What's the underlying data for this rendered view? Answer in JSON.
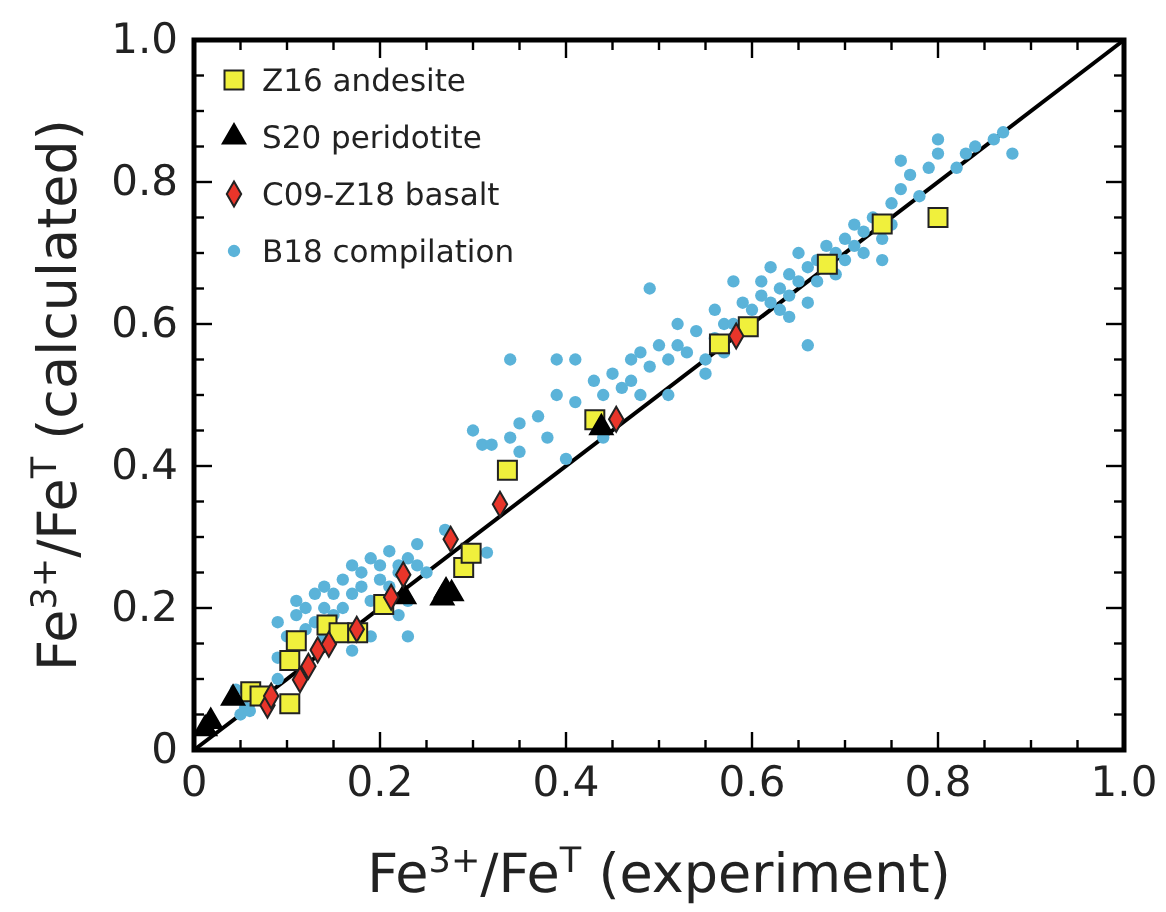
{
  "chart_data": {
    "type": "scatter",
    "xlabel": "Fe$^{3+}$/Fe$^{T}$ (experiment)",
    "ylabel": "Fe$^{3+}$/Fe$^{T}$ (calculated)",
    "xlim": [
      0,
      1
    ],
    "ylim": [
      0,
      1
    ],
    "xticks": [
      0,
      {
        "value": 0.05,
        "label": null
      },
      {
        "value": 0.1,
        "label": null
      },
      {
        "value": 0.15,
        "label": null
      },
      0.2,
      {
        "value": 0.25,
        "label": null
      },
      {
        "value": 0.3,
        "label": null
      },
      {
        "value": 0.35,
        "label": null
      },
      0.4,
      {
        "value": 0.45,
        "label": null
      },
      {
        "value": 0.5,
        "label": null
      },
      {
        "value": 0.55,
        "label": null
      },
      0.6,
      {
        "value": 0.65,
        "label": null
      },
      {
        "value": 0.7,
        "label": null
      },
      {
        "value": 0.75,
        "label": null
      },
      0.8,
      {
        "value": 0.85,
        "label": null
      },
      {
        "value": 0.9,
        "label": null
      },
      {
        "value": 0.95,
        "label": null
      },
      {
        "value": 1,
        "label": "1.0"
      }
    ],
    "yticks": [
      0,
      {
        "value": 0.05,
        "label": null
      },
      {
        "value": 0.1,
        "label": null
      },
      {
        "value": 0.15,
        "label": null
      },
      0.2,
      {
        "value": 0.25,
        "label": null
      },
      {
        "value": 0.3,
        "label": null
      },
      {
        "value": 0.35,
        "label": null
      },
      0.4,
      {
        "value": 0.45,
        "label": null
      },
      {
        "value": 0.5,
        "label": null
      },
      {
        "value": 0.55,
        "label": null
      },
      0.6,
      {
        "value": 0.65,
        "label": null
      },
      {
        "value": 0.7,
        "label": null
      },
      {
        "value": 0.75,
        "label": null
      },
      0.8,
      {
        "value": 0.85,
        "label": null
      },
      {
        "value": 0.9,
        "label": null
      },
      {
        "value": 0.95,
        "label": null
      },
      {
        "value": 1,
        "label": "1.0"
      }
    ],
    "grid": false,
    "legend": "top left",
    "series": [
      {
        "type": "line",
        "color": "#000000",
        "marker": "none",
        "x": [
          0,
          1
        ],
        "values": [
          0,
          1
        ]
      },
      {
        "name": "B18 compilation",
        "color": "#5bb3d9",
        "marker": "circle",
        "x": [
          0.05,
          0.055,
          0.06,
          0.045,
          0.09,
          0.09,
          0.1,
          0.09,
          0.11,
          0.11,
          0.12,
          0.12,
          0.13,
          0.13,
          0.14,
          0.14,
          0.15,
          0.15,
          0.16,
          0.16,
          0.17,
          0.17,
          0.18,
          0.18,
          0.19,
          0.19,
          0.2,
          0.2,
          0.21,
          0.21,
          0.22,
          0.22,
          0.23,
          0.24,
          0.24,
          0.23,
          0.22,
          0.19,
          0.23,
          0.17,
          0.14,
          0.25,
          0.27,
          0.315,
          0.3,
          0.31,
          0.32,
          0.34,
          0.35,
          0.35,
          0.34,
          0.38,
          0.37,
          0.39,
          0.39,
          0.41,
          0.41,
          0.4,
          0.44,
          0.45,
          0.47,
          0.48,
          0.48,
          0.49,
          0.49,
          0.5,
          0.51,
          0.52,
          0.52,
          0.53,
          0.54,
          0.55,
          0.56,
          0.56,
          0.57,
          0.58,
          0.58,
          0.59,
          0.6,
          0.61,
          0.61,
          0.62,
          0.62,
          0.63,
          0.63,
          0.64,
          0.64,
          0.65,
          0.65,
          0.66,
          0.66,
          0.67,
          0.67,
          0.68,
          0.69,
          0.69,
          0.7,
          0.7,
          0.71,
          0.71,
          0.72,
          0.72,
          0.73,
          0.74,
          0.75,
          0.75,
          0.76,
          0.77,
          0.78,
          0.79,
          0.8,
          0.82,
          0.83,
          0.84,
          0.86,
          0.87,
          0.88,
          0.8,
          0.76,
          0.64,
          0.66,
          0.74,
          0.57,
          0.55,
          0.46,
          0.44,
          0.47,
          0.43,
          0.51
        ],
        "values": [
          0.05,
          0.06,
          0.055,
          0.085,
          0.1,
          0.13,
          0.16,
          0.18,
          0.19,
          0.21,
          0.17,
          0.2,
          0.22,
          0.18,
          0.2,
          0.23,
          0.19,
          0.22,
          0.24,
          0.2,
          0.22,
          0.26,
          0.23,
          0.25,
          0.21,
          0.27,
          0.24,
          0.26,
          0.23,
          0.28,
          0.25,
          0.26,
          0.27,
          0.29,
          0.26,
          0.21,
          0.19,
          0.16,
          0.16,
          0.14,
          0.16,
          0.25,
          0.31,
          0.278,
          0.45,
          0.43,
          0.43,
          0.44,
          0.46,
          0.42,
          0.55,
          0.44,
          0.47,
          0.5,
          0.55,
          0.55,
          0.49,
          0.41,
          0.5,
          0.53,
          0.52,
          0.56,
          0.5,
          0.54,
          0.65,
          0.57,
          0.55,
          0.57,
          0.6,
          0.56,
          0.59,
          0.55,
          0.58,
          0.62,
          0.6,
          0.6,
          0.66,
          0.63,
          0.62,
          0.64,
          0.66,
          0.63,
          0.68,
          0.65,
          0.62,
          0.67,
          0.64,
          0.66,
          0.7,
          0.68,
          0.63,
          0.69,
          0.66,
          0.71,
          0.7,
          0.67,
          0.72,
          0.69,
          0.74,
          0.71,
          0.73,
          0.7,
          0.75,
          0.72,
          0.74,
          0.77,
          0.79,
          0.81,
          0.78,
          0.82,
          0.84,
          0.82,
          0.84,
          0.85,
          0.86,
          0.87,
          0.84,
          0.86,
          0.83,
          0.61,
          0.57,
          0.69,
          0.56,
          0.53,
          0.51,
          0.44,
          0.55,
          0.52,
          0.5
        ]
      },
      {
        "name": "Z16 andesite",
        "color": "#f0f03c",
        "marker": "square",
        "x": [
          0.061,
          0.071,
          0.103,
          0.103,
          0.11,
          0.143,
          0.156,
          0.176,
          0.204,
          0.29,
          0.298,
          0.337,
          0.431,
          0.565,
          0.596,
          0.681,
          0.74,
          0.8
        ],
        "values": [
          0.082,
          0.076,
          0.065,
          0.126,
          0.154,
          0.176,
          0.165,
          0.165,
          0.205,
          0.257,
          0.277,
          0.394,
          0.465,
          0.572,
          0.596,
          0.684,
          0.741,
          0.75
        ]
      },
      {
        "name": "S20 peridotite",
        "color": "#000000",
        "marker": "triangle",
        "x": [
          0.012,
          0.018,
          0.042,
          0.226,
          0.267,
          0.271,
          0.277,
          0.438
        ],
        "values": [
          0.03,
          0.04,
          0.073,
          0.216,
          0.214,
          0.224,
          0.22,
          0.454
        ]
      },
      {
        "name": "C09-Z18 basalt",
        "color": "#e8352a",
        "marker": "diamond",
        "x": [
          0.079,
          0.083,
          0.114,
          0.123,
          0.133,
          0.145,
          0.175,
          0.212,
          0.225,
          0.276,
          0.329,
          0.454,
          0.583
        ],
        "values": [
          0.063,
          0.076,
          0.099,
          0.118,
          0.141,
          0.149,
          0.17,
          0.215,
          0.247,
          0.297,
          0.346,
          0.466,
          0.583
        ]
      }
    ]
  }
}
